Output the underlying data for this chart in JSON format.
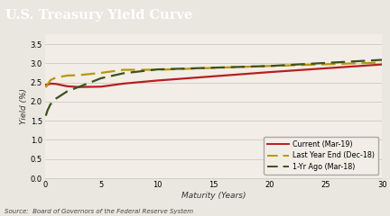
{
  "title": "U.S. Treasury Yield Curve",
  "title_bg_color": "#4a4a4a",
  "title_text_color": "#ffffff",
  "xlabel": "Maturity (Years)",
  "ylabel": "Yield (%)",
  "source": "Source:  Board of Governors of the Federal Reserve System",
  "xlim": [
    0,
    30
  ],
  "ylim": [
    0.0,
    3.75
  ],
  "yticks": [
    0.0,
    0.5,
    1.0,
    1.5,
    2.0,
    2.5,
    3.0,
    3.5
  ],
  "xticks": [
    0,
    5,
    10,
    15,
    20,
    25,
    30
  ],
  "bg_color": "#eae7e0",
  "plot_bg_color": "#f2ede6",
  "maturity": [
    0.08,
    0.25,
    0.5,
    1,
    2,
    3,
    5,
    7,
    10,
    20,
    30
  ],
  "current_mar19": [
    2.44,
    2.44,
    2.47,
    2.46,
    2.4,
    2.38,
    2.39,
    2.47,
    2.55,
    2.77,
    2.97
  ],
  "lastyear_dec18": [
    2.37,
    2.45,
    2.56,
    2.63,
    2.68,
    2.69,
    2.75,
    2.83,
    2.83,
    2.93,
    3.02
  ],
  "yr_ago_mar18": [
    1.63,
    1.78,
    1.93,
    2.08,
    2.27,
    2.38,
    2.61,
    2.74,
    2.84,
    2.93,
    3.09
  ],
  "current_color": "#b52020",
  "lastyear_color": "#b8960c",
  "yr_ago_color": "#3a5218",
  "legend_labels": [
    "Current (Mar-19)",
    "Last Year End (Dec-18)",
    "1-Yr Ago (Mar-18)"
  ]
}
